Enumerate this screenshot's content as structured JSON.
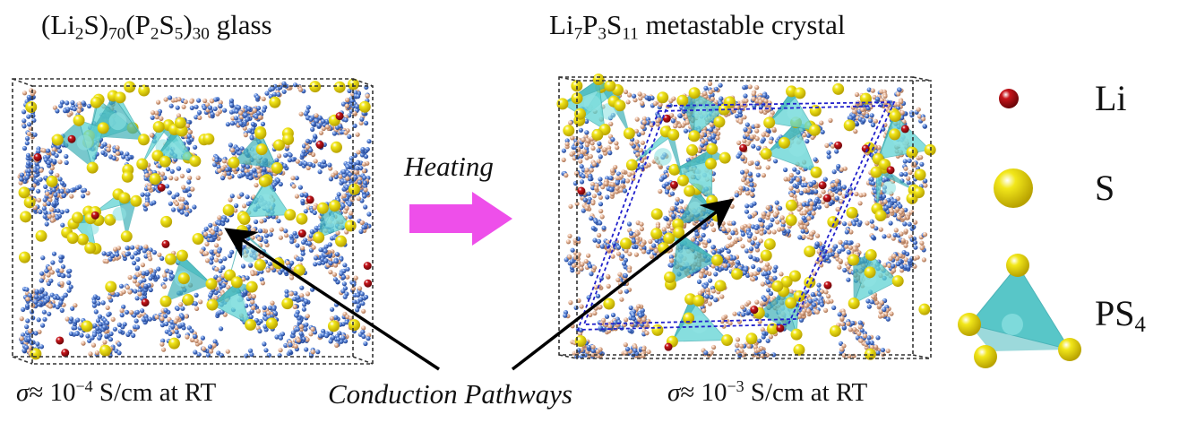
{
  "figure": {
    "glass": {
      "formula": [
        {
          "t": "(Li"
        },
        {
          "t": "2",
          "sub": true
        },
        {
          "t": "S)"
        },
        {
          "t": "70",
          "sub": true
        },
        {
          "t": "(P"
        },
        {
          "t": "2",
          "sub": true
        },
        {
          "t": "S"
        },
        {
          "t": "5",
          "sub": true
        },
        {
          "t": ")"
        },
        {
          "t": "30",
          "sub": true
        },
        {
          "t": " glass"
        }
      ],
      "conductivity": [
        {
          "t": "σ",
          "it": true
        },
        {
          "t": "≈  10"
        },
        {
          "t": "−4",
          "sup": true
        },
        {
          "t": " S/cm at RT"
        }
      ]
    },
    "crystal": {
      "formula": [
        {
          "t": "Li"
        },
        {
          "t": "7",
          "sub": true
        },
        {
          "t": "P"
        },
        {
          "t": "3",
          "sub": true
        },
        {
          "t": "S"
        },
        {
          "t": "11",
          "sub": true
        },
        {
          "t": "  metastable crystal"
        }
      ],
      "conductivity": [
        {
          "t": "σ",
          "it": true
        },
        {
          "t": "≈  10"
        },
        {
          "t": "−3",
          "sup": true
        },
        {
          "t": " S/cm at RT"
        }
      ]
    },
    "arrow_label": "Heating",
    "pathway_label": "Conduction Pathways",
    "legend": {
      "li": "Li",
      "s": [
        {
          "t": "S"
        }
      ],
      "ps4": [
        {
          "t": "PS"
        },
        {
          "t": "4",
          "sub": true
        }
      ]
    },
    "colors": {
      "li_atom": "#c8151b",
      "s_atom": "#f2e71a",
      "ps4_tetrahedron": "#5fd3d3",
      "li_pathway": "#3d6fd0",
      "li_pathway_alt": "#d9a88a",
      "heating_arrow": "#ee4fea",
      "cell_frame": "#333333",
      "crystal_unit_cell": "#2222cc"
    }
  }
}
